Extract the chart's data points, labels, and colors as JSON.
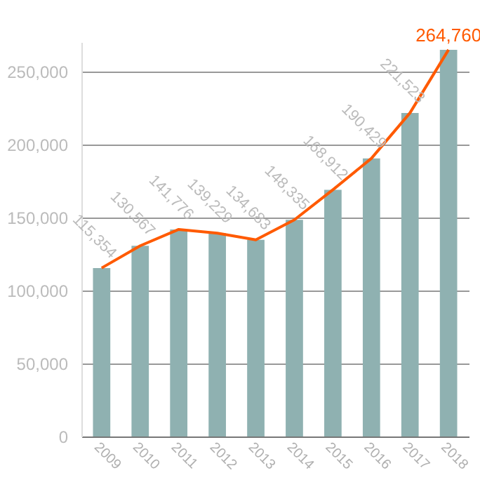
{
  "chart_data": {
    "type": "bar",
    "categories": [
      "2009",
      "2010",
      "2011",
      "2012",
      "2013",
      "2014",
      "2015",
      "2016",
      "2017",
      "2018"
    ],
    "series": [
      {
        "color": "#8fb1b1",
        "values": [
          115354,
          130567,
          141776,
          139229,
          134683,
          148335,
          168912,
          190429,
          221523,
          264760
        ],
        "value_labels": [
          "115,354",
          "130,567",
          "141,776",
          "139,229",
          "134,683",
          "148,335",
          "168,912",
          "190,429",
          "221,523",
          null
        ]
      },
      {
        "type": "line",
        "color": "#ff5a00",
        "values": [
          115354,
          130567,
          141776,
          139229,
          134683,
          148335,
          168912,
          190429,
          221523,
          264760
        ]
      }
    ],
    "annotations": [
      {
        "text": "264,760",
        "x": "2018",
        "y": 264760
      }
    ],
    "ylim": [
      0,
      270000
    ],
    "yticks": [
      0,
      {
        "value": 50000,
        "label": "50,000"
      },
      {
        "value": 100000,
        "label": "100,000"
      },
      {
        "value": 150000,
        "label": "150,000"
      },
      {
        "value": 200000,
        "label": "200,000"
      },
      {
        "value": 250000,
        "label": "250,000"
      }
    ],
    "grid": "y",
    "marker": "none"
  }
}
